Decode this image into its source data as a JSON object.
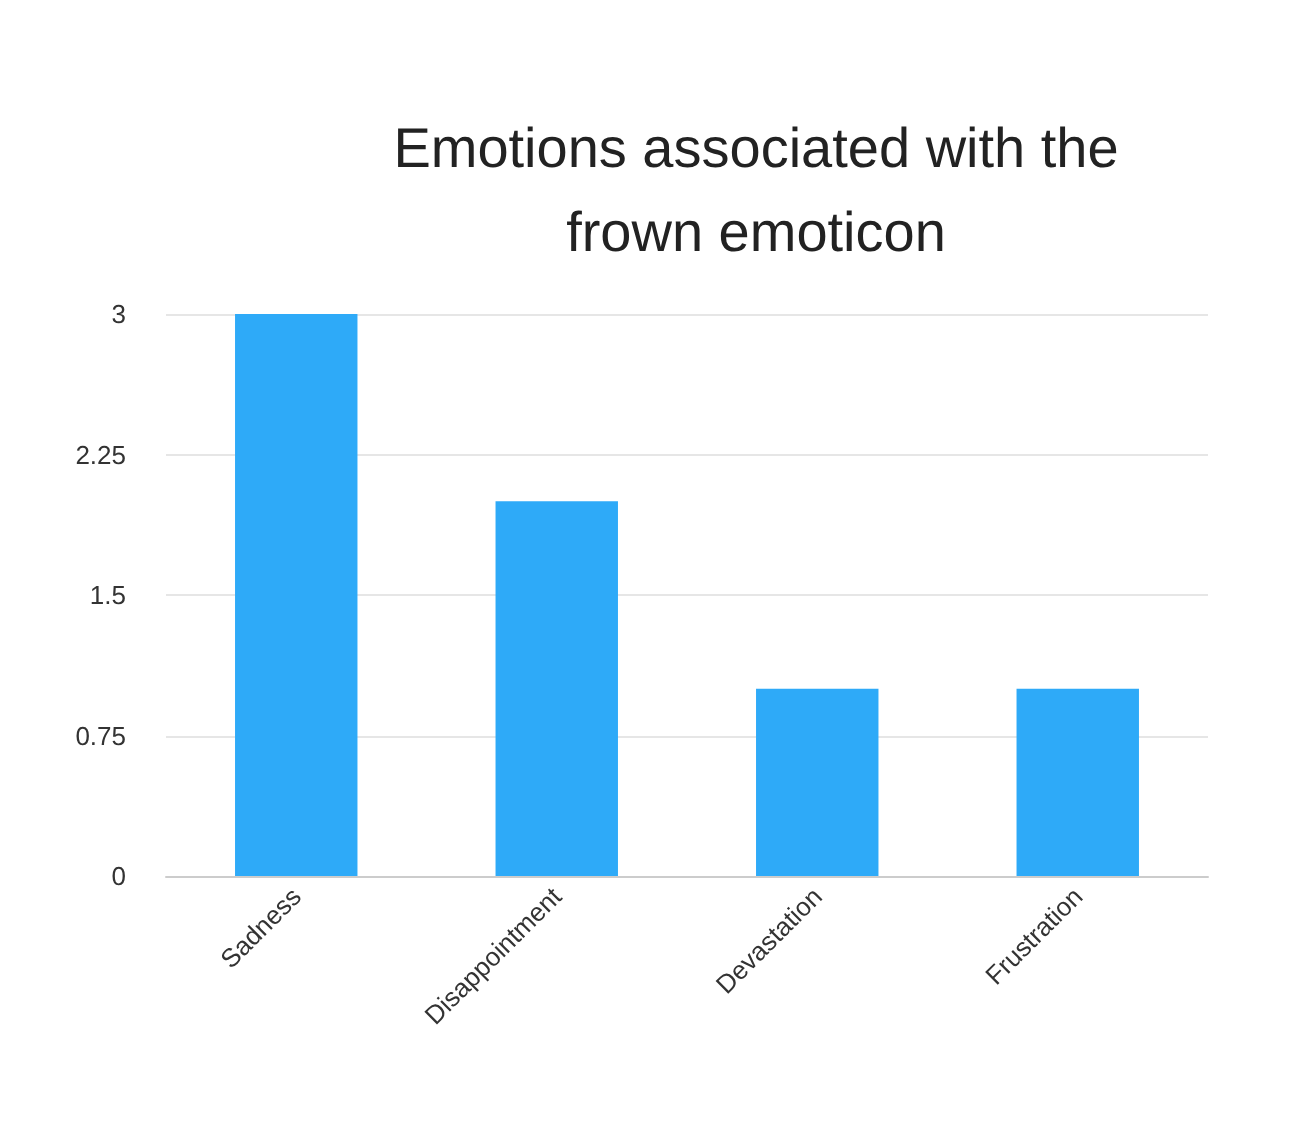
{
  "chart_data": {
    "type": "bar",
    "title": "Emotions associated with the\nfrown emoticon",
    "categories": [
      "Sadness",
      "Disappointment",
      "Devastation",
      "Frustration"
    ],
    "values": [
      3,
      2,
      1,
      1
    ],
    "color": "#2eaaf8",
    "ylim": [
      0,
      3
    ],
    "yticks": [
      0,
      0.75,
      1.5,
      2.25,
      3
    ],
    "grid": "y"
  }
}
